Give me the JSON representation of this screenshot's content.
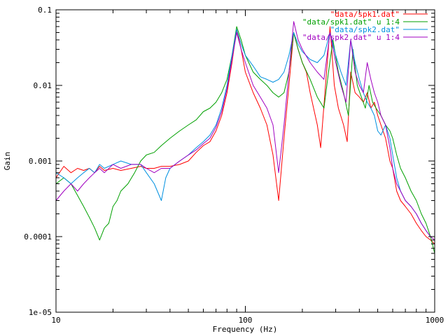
{
  "chart_data": {
    "type": "line",
    "xlabel": "Frequency (Hz)",
    "ylabel": "Gain",
    "xscale": "log",
    "yscale": "log",
    "xlim": [
      10,
      1000
    ],
    "ylim": [
      1e-05,
      0.1
    ],
    "grid": false,
    "legend_position": "top-right",
    "x_ticks": [
      {
        "value": 10,
        "label": "10"
      },
      {
        "value": 100,
        "label": "100"
      },
      {
        "value": 1000,
        "label": "1000"
      }
    ],
    "y_ticks": [
      {
        "value": 1e-05,
        "label": "1e-05"
      },
      {
        "value": 0.0001,
        "label": "0.0001"
      },
      {
        "value": 0.001,
        "label": "0.001"
      },
      {
        "value": 0.01,
        "label": "0.01"
      },
      {
        "value": 0.1,
        "label": "0.1"
      }
    ],
    "series": [
      {
        "name": "\"data/spk1.dat\"",
        "color": "#ff0000",
        "points": [
          [
            10,
            0.0006
          ],
          [
            11,
            0.00085
          ],
          [
            12,
            0.0007
          ],
          [
            13,
            0.0008
          ],
          [
            14,
            0.00075
          ],
          [
            15,
            0.0008
          ],
          [
            16,
            0.0007
          ],
          [
            17,
            0.00085
          ],
          [
            18,
            0.00075
          ],
          [
            20,
            0.0008
          ],
          [
            22,
            0.00075
          ],
          [
            25,
            0.0008
          ],
          [
            28,
            0.00085
          ],
          [
            30,
            0.0008
          ],
          [
            33,
            0.0008
          ],
          [
            36,
            0.00085
          ],
          [
            40,
            0.00085
          ],
          [
            45,
            0.0009
          ],
          [
            50,
            0.001
          ],
          [
            55,
            0.0013
          ],
          [
            60,
            0.0016
          ],
          [
            65,
            0.0018
          ],
          [
            70,
            0.0025
          ],
          [
            75,
            0.004
          ],
          [
            80,
            0.008
          ],
          [
            85,
            0.02
          ],
          [
            90,
            0.055
          ],
          [
            95,
            0.03
          ],
          [
            100,
            0.015
          ],
          [
            110,
            0.008
          ],
          [
            120,
            0.005
          ],
          [
            130,
            0.003
          ],
          [
            140,
            0.0012
          ],
          [
            150,
            0.0003
          ],
          [
            160,
            0.002
          ],
          [
            170,
            0.01
          ],
          [
            180,
            0.05
          ],
          [
            190,
            0.03
          ],
          [
            200,
            0.02
          ],
          [
            210,
            0.015
          ],
          [
            220,
            0.008
          ],
          [
            240,
            0.003
          ],
          [
            250,
            0.0015
          ],
          [
            265,
            0.01
          ],
          [
            280,
            0.06
          ],
          [
            295,
            0.01
          ],
          [
            310,
            0.005
          ],
          [
            330,
            0.003
          ],
          [
            345,
            0.0018
          ],
          [
            360,
            0.015
          ],
          [
            380,
            0.008
          ],
          [
            400,
            0.007
          ],
          [
            420,
            0.006
          ],
          [
            440,
            0.008
          ],
          [
            460,
            0.005
          ],
          [
            480,
            0.006
          ],
          [
            500,
            0.004
          ],
          [
            520,
            0.003
          ],
          [
            550,
            0.002
          ],
          [
            580,
            0.001
          ],
          [
            600,
            0.0008
          ],
          [
            630,
            0.0004
          ],
          [
            660,
            0.0003
          ],
          [
            700,
            0.00025
          ],
          [
            750,
            0.0002
          ],
          [
            800,
            0.00015
          ],
          [
            850,
            0.00012
          ],
          [
            900,
            0.0001
          ],
          [
            950,
            9e-05
          ],
          [
            1000,
            8e-05
          ]
        ]
      },
      {
        "name": "\"data/spk1.dat\" u 1:4",
        "color": "#00a000",
        "points": [
          [
            10,
            0.0005
          ],
          [
            11,
            0.0006
          ],
          [
            12,
            0.0005
          ],
          [
            13,
            0.00035
          ],
          [
            14,
            0.00025
          ],
          [
            15,
            0.00018
          ],
          [
            16,
            0.00013
          ],
          [
            17,
            9e-05
          ],
          [
            18,
            0.00013
          ],
          [
            19,
            0.00015
          ],
          [
            20,
            0.00025
          ],
          [
            21,
            0.0003
          ],
          [
            22,
            0.0004
          ],
          [
            24,
            0.0005
          ],
          [
            26,
            0.0007
          ],
          [
            28,
            0.001
          ],
          [
            30,
            0.0012
          ],
          [
            33,
            0.0013
          ],
          [
            36,
            0.0016
          ],
          [
            40,
            0.002
          ],
          [
            45,
            0.0025
          ],
          [
            50,
            0.003
          ],
          [
            55,
            0.0035
          ],
          [
            60,
            0.0045
          ],
          [
            65,
            0.005
          ],
          [
            70,
            0.006
          ],
          [
            75,
            0.008
          ],
          [
            80,
            0.012
          ],
          [
            85,
            0.025
          ],
          [
            90,
            0.06
          ],
          [
            95,
            0.04
          ],
          [
            100,
            0.025
          ],
          [
            110,
            0.015
          ],
          [
            120,
            0.012
          ],
          [
            130,
            0.01
          ],
          [
            140,
            0.008
          ],
          [
            150,
            0.007
          ],
          [
            160,
            0.008
          ],
          [
            170,
            0.015
          ],
          [
            180,
            0.05
          ],
          [
            190,
            0.03
          ],
          [
            200,
            0.02
          ],
          [
            220,
            0.012
          ],
          [
            240,
            0.007
          ],
          [
            260,
            0.005
          ],
          [
            275,
            0.015
          ],
          [
            290,
            0.04
          ],
          [
            310,
            0.015
          ],
          [
            330,
            0.008
          ],
          [
            350,
            0.004
          ],
          [
            370,
            0.03
          ],
          [
            390,
            0.01
          ],
          [
            410,
            0.007
          ],
          [
            430,
            0.005
          ],
          [
            450,
            0.01
          ],
          [
            470,
            0.006
          ],
          [
            490,
            0.005
          ],
          [
            520,
            0.004
          ],
          [
            550,
            0.003
          ],
          [
            580,
            0.0025
          ],
          [
            600,
            0.002
          ],
          [
            630,
            0.0012
          ],
          [
            660,
            0.0008
          ],
          [
            700,
            0.0006
          ],
          [
            750,
            0.0004
          ],
          [
            800,
            0.0003
          ],
          [
            850,
            0.0002
          ],
          [
            900,
            0.00015
          ],
          [
            950,
            0.0001
          ],
          [
            1000,
            6e-05
          ]
        ]
      },
      {
        "name": "\"data/spk2.dat\"",
        "color": "#0090e0",
        "points": [
          [
            10,
            0.0007
          ],
          [
            11,
            0.0006
          ],
          [
            12,
            0.0005
          ],
          [
            13,
            0.0006
          ],
          [
            14,
            0.0007
          ],
          [
            15,
            0.0008
          ],
          [
            16,
            0.0007
          ],
          [
            17,
            0.0009
          ],
          [
            18,
            0.0008
          ],
          [
            20,
            0.0009
          ],
          [
            22,
            0.001
          ],
          [
            25,
            0.0009
          ],
          [
            28,
            0.0009
          ],
          [
            30,
            0.0007
          ],
          [
            33,
            0.0005
          ],
          [
            36,
            0.0003
          ],
          [
            38,
            0.0006
          ],
          [
            40,
            0.0008
          ],
          [
            45,
            0.001
          ],
          [
            50,
            0.0012
          ],
          [
            55,
            0.0015
          ],
          [
            60,
            0.0018
          ],
          [
            65,
            0.0022
          ],
          [
            70,
            0.003
          ],
          [
            75,
            0.005
          ],
          [
            80,
            0.01
          ],
          [
            85,
            0.025
          ],
          [
            90,
            0.055
          ],
          [
            95,
            0.035
          ],
          [
            100,
            0.025
          ],
          [
            110,
            0.018
          ],
          [
            120,
            0.013
          ],
          [
            130,
            0.012
          ],
          [
            140,
            0.011
          ],
          [
            150,
            0.012
          ],
          [
            160,
            0.015
          ],
          [
            170,
            0.025
          ],
          [
            180,
            0.05
          ],
          [
            190,
            0.035
          ],
          [
            200,
            0.028
          ],
          [
            220,
            0.022
          ],
          [
            240,
            0.02
          ],
          [
            260,
            0.025
          ],
          [
            280,
            0.05
          ],
          [
            300,
            0.025
          ],
          [
            320,
            0.015
          ],
          [
            340,
            0.01
          ],
          [
            360,
            0.04
          ],
          [
            380,
            0.02
          ],
          [
            400,
            0.012
          ],
          [
            420,
            0.008
          ],
          [
            440,
            0.006
          ],
          [
            460,
            0.005
          ],
          [
            480,
            0.004
          ],
          [
            500,
            0.0025
          ],
          [
            520,
            0.0022
          ],
          [
            550,
            0.003
          ],
          [
            580,
            0.002
          ],
          [
            600,
            0.0012
          ],
          [
            630,
            0.0006
          ],
          [
            660,
            0.0004
          ],
          [
            700,
            0.0003
          ],
          [
            750,
            0.00025
          ],
          [
            800,
            0.0002
          ],
          [
            850,
            0.00015
          ],
          [
            900,
            0.00012
          ],
          [
            950,
            0.0001
          ],
          [
            1000,
            0.0001
          ]
        ]
      },
      {
        "name": "\"data/spk2.dat\" u 1:4",
        "color": "#a000c0",
        "points": [
          [
            10,
            0.0003
          ],
          [
            11,
            0.0004
          ],
          [
            12,
            0.0005
          ],
          [
            13,
            0.0004
          ],
          [
            14,
            0.0005
          ],
          [
            15,
            0.0006
          ],
          [
            16,
            0.0007
          ],
          [
            17,
            0.0008
          ],
          [
            18,
            0.0007
          ],
          [
            20,
            0.0009
          ],
          [
            22,
            0.0008
          ],
          [
            25,
            0.0009
          ],
          [
            28,
            0.0009
          ],
          [
            30,
            0.0008
          ],
          [
            33,
            0.0007
          ],
          [
            36,
            0.0008
          ],
          [
            40,
            0.0008
          ],
          [
            45,
            0.001
          ],
          [
            50,
            0.0012
          ],
          [
            55,
            0.0014
          ],
          [
            60,
            0.0017
          ],
          [
            65,
            0.002
          ],
          [
            70,
            0.0028
          ],
          [
            75,
            0.0045
          ],
          [
            80,
            0.009
          ],
          [
            85,
            0.022
          ],
          [
            90,
            0.05
          ],
          [
            95,
            0.03
          ],
          [
            100,
            0.02
          ],
          [
            110,
            0.01
          ],
          [
            120,
            0.007
          ],
          [
            130,
            0.005
          ],
          [
            140,
            0.003
          ],
          [
            150,
            0.0007
          ],
          [
            160,
            0.003
          ],
          [
            170,
            0.015
          ],
          [
            180,
            0.07
          ],
          [
            190,
            0.04
          ],
          [
            200,
            0.03
          ],
          [
            220,
            0.02
          ],
          [
            240,
            0.015
          ],
          [
            260,
            0.012
          ],
          [
            280,
            0.05
          ],
          [
            300,
            0.02
          ],
          [
            320,
            0.01
          ],
          [
            340,
            0.006
          ],
          [
            360,
            0.04
          ],
          [
            380,
            0.015
          ],
          [
            400,
            0.01
          ],
          [
            420,
            0.008
          ],
          [
            440,
            0.02
          ],
          [
            460,
            0.012
          ],
          [
            480,
            0.008
          ],
          [
            500,
            0.006
          ],
          [
            520,
            0.004
          ],
          [
            550,
            0.003
          ],
          [
            580,
            0.0015
          ],
          [
            600,
            0.0008
          ],
          [
            630,
            0.0005
          ],
          [
            660,
            0.0004
          ],
          [
            700,
            0.0003
          ],
          [
            750,
            0.00025
          ],
          [
            800,
            0.0002
          ],
          [
            850,
            0.00015
          ],
          [
            900,
            0.00012
          ],
          [
            950,
            0.0001
          ],
          [
            1000,
            9e-05
          ]
        ]
      }
    ]
  }
}
